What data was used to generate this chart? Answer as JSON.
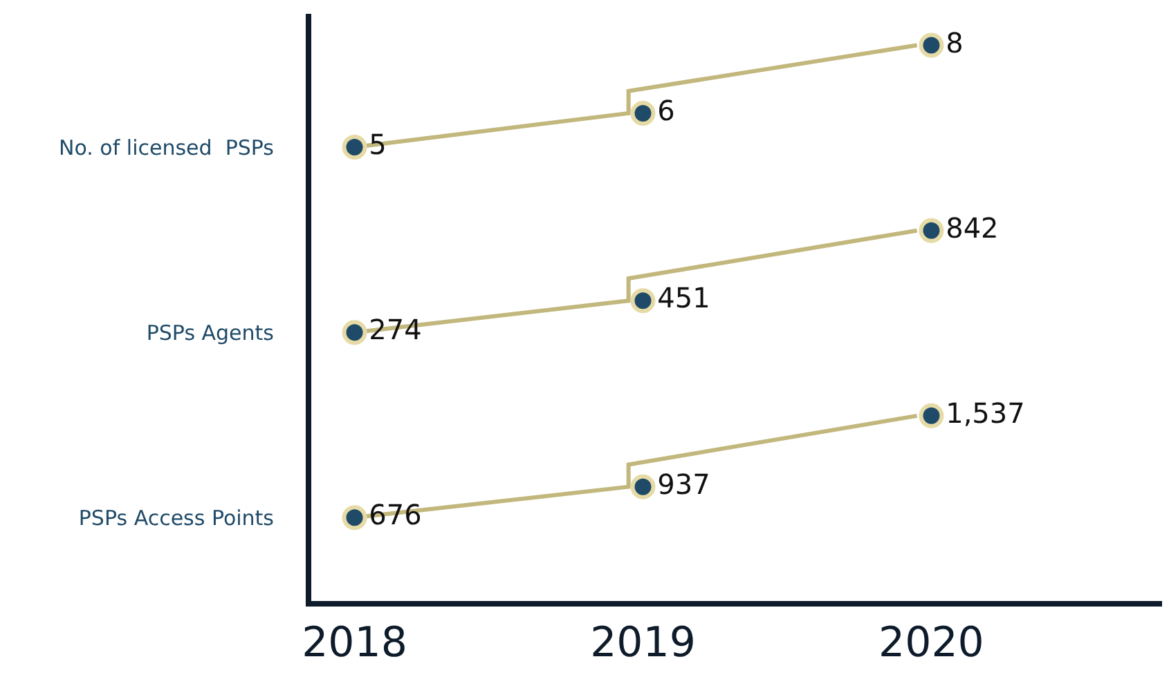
{
  "chart_data": {
    "type": "other",
    "categories": [
      "2018",
      "2019",
      "2020"
    ],
    "legend": false,
    "series": [
      {
        "name": "No. of licensed  PSPs",
        "color": "#1f4a68",
        "values": [
          5,
          6,
          8
        ],
        "value_labels": [
          "5",
          "6",
          "8"
        ]
      },
      {
        "name": "PSPs Agents",
        "color": "#1f4a68",
        "values": [
          274,
          451,
          842
        ],
        "value_labels": [
          "274",
          "451",
          "842"
        ]
      },
      {
        "name": "PSPs Access Points",
        "color": "#1f4a68",
        "values": [
          676,
          937,
          1537
        ],
        "value_labels": [
          "676",
          "937",
          "1,537"
        ]
      }
    ]
  }
}
